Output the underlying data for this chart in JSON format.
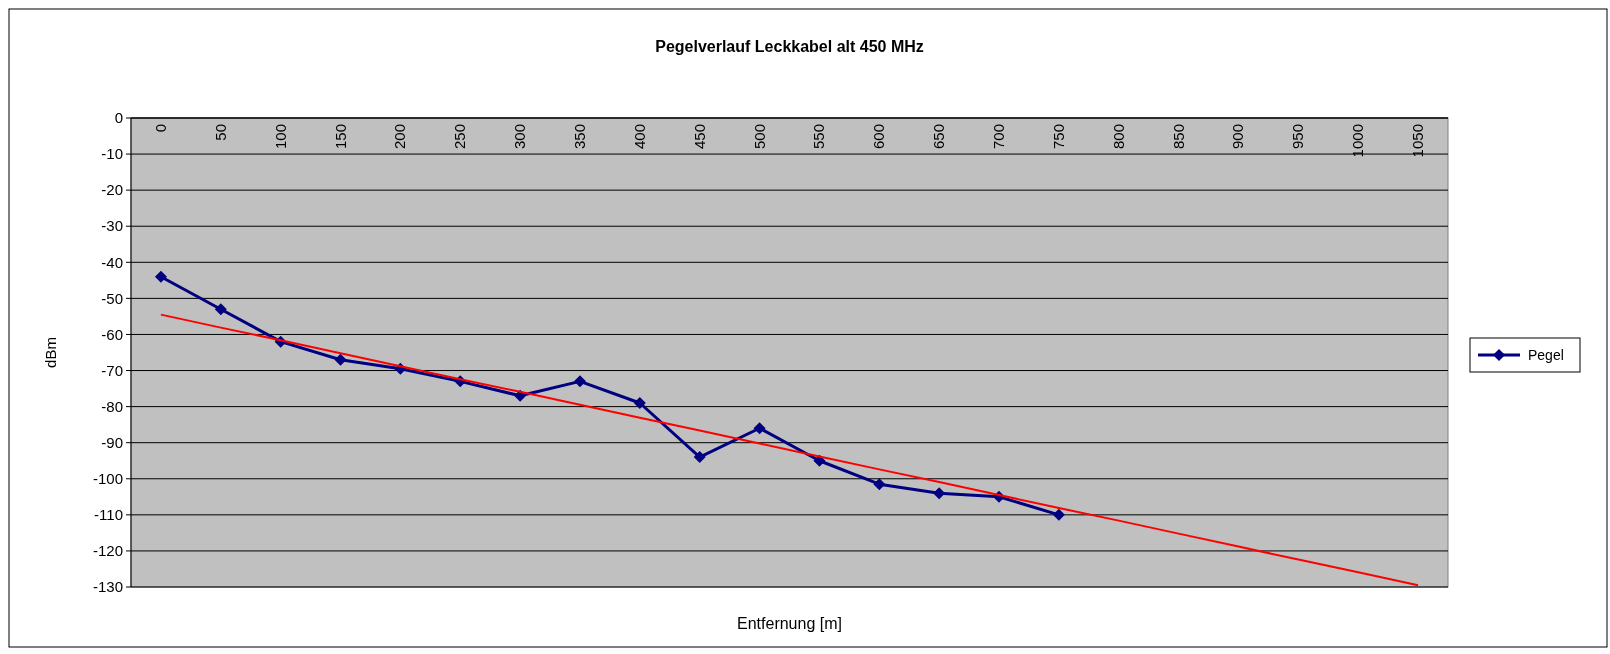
{
  "chart_data": {
    "type": "line",
    "title": "Pegelverlauf Leckkabel alt 450 MHz",
    "xlabel": "Entfernung [m]",
    "ylabel": "dBm",
    "categories": [
      "0",
      "50",
      "100",
      "150",
      "200",
      "250",
      "300",
      "350",
      "400",
      "450",
      "500",
      "550",
      "600",
      "650",
      "700",
      "750",
      "800",
      "850",
      "900",
      "950",
      "1000",
      "1050"
    ],
    "series": [
      {
        "name": "Pegel",
        "color": "#000080",
        "marker": "diamond",
        "values": [
          -44,
          -53,
          -62,
          -67,
          -69.5,
          -73,
          -77,
          -73,
          -79,
          -94,
          -86,
          -95,
          -101.5,
          -104,
          -105,
          -110,
          null,
          null,
          null,
          null,
          null,
          null
        ]
      },
      {
        "type": "line",
        "color": "#ff0000",
        "marker": "none",
        "values": [
          -54.5,
          -58.1,
          -61.6,
          -65.2,
          -68.8,
          -72.4,
          -75.9,
          -79.5,
          -83.1,
          -86.6,
          -90.2,
          -93.8,
          -97.4,
          -100.9,
          -104.5,
          -108.1,
          -111.6,
          -115.2,
          -118.8,
          -122.4,
          -125.9,
          -129.5
        ]
      }
    ],
    "ylim": [
      -130,
      0
    ],
    "yticks": [
      0,
      -10,
      -20,
      -30,
      -40,
      -50,
      -60,
      -70,
      -80,
      -90,
      -100,
      -110,
      -120,
      -130
    ],
    "grid": "y",
    "legend": "right"
  }
}
